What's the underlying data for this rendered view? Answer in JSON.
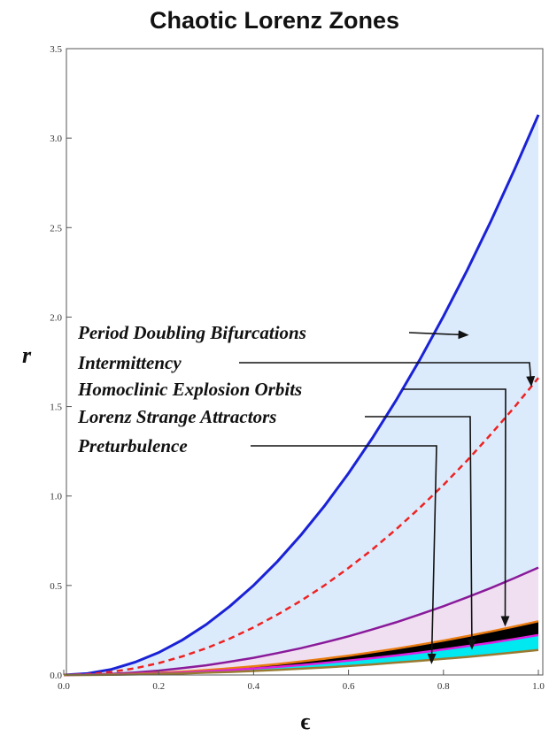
{
  "chart_data": {
    "type": "area",
    "title": "Chaotic Lorenz Zones",
    "xlabel": "ϵ",
    "ylabel": "r",
    "xlim": [
      0,
      1
    ],
    "ylim": [
      0,
      3.5
    ],
    "x_ticks": [
      "0.0",
      "0.2",
      "0.4",
      "0.6",
      "0.8",
      "1.0"
    ],
    "y_ticks": [
      "0.0",
      "0.5",
      "1.0",
      "1.5",
      "2.0",
      "2.5",
      "3.0",
      "3.5"
    ],
    "grid": false,
    "x": [
      0.0,
      0.05,
      0.1,
      0.15,
      0.2,
      0.25,
      0.3,
      0.35,
      0.4,
      0.45,
      0.5,
      0.55,
      0.6,
      0.65,
      0.7,
      0.75,
      0.8,
      0.85,
      0.9,
      0.95,
      1.0
    ],
    "series": [
      {
        "color": "#1a22d6",
        "style": "solid",
        "fill": "#dcebfb",
        "values": [
          0.0,
          0.008,
          0.031,
          0.071,
          0.125,
          0.196,
          0.282,
          0.384,
          0.501,
          0.634,
          0.783,
          0.947,
          1.127,
          1.323,
          1.534,
          1.761,
          2.004,
          2.262,
          2.536,
          2.826,
          3.13
        ]
      },
      {
        "color": "#ee2222",
        "style": "dashed",
        "values": [
          0.0,
          0.004,
          0.017,
          0.037,
          0.066,
          0.104,
          0.149,
          0.203,
          0.266,
          0.337,
          0.415,
          0.502,
          0.598,
          0.701,
          0.813,
          0.934,
          1.062,
          1.199,
          1.345,
          1.498,
          1.66
        ]
      },
      {
        "color": "#8a1a9a",
        "style": "solid",
        "fill": "#f0dff0",
        "values": [
          0.0,
          0.002,
          0.006,
          0.014,
          0.024,
          0.038,
          0.054,
          0.074,
          0.096,
          0.122,
          0.15,
          0.182,
          0.216,
          0.254,
          0.294,
          0.338,
          0.384,
          0.434,
          0.486,
          0.542,
          0.6
        ]
      },
      {
        "color": "#e87a10",
        "style": "solid",
        "fill": "#000000",
        "values": [
          0.0,
          0.001,
          0.003,
          0.007,
          0.012,
          0.019,
          0.027,
          0.037,
          0.048,
          0.061,
          0.075,
          0.091,
          0.108,
          0.127,
          0.147,
          0.169,
          0.192,
          0.217,
          0.243,
          0.271,
          0.3
        ]
      },
      {
        "color": "#e020e0",
        "style": "solid",
        "fill": "#00e8f0",
        "values": [
          0.0,
          0.001,
          0.002,
          0.005,
          0.009,
          0.014,
          0.02,
          0.027,
          0.036,
          0.045,
          0.056,
          0.067,
          0.08,
          0.094,
          0.109,
          0.125,
          0.143,
          0.161,
          0.18,
          0.201,
          0.223
        ]
      },
      {
        "color": "#9a7a30",
        "style": "solid",
        "values": [
          0.0,
          0.0,
          0.001,
          0.003,
          0.006,
          0.009,
          0.013,
          0.017,
          0.022,
          0.028,
          0.035,
          0.042,
          0.05,
          0.059,
          0.069,
          0.079,
          0.09,
          0.101,
          0.113,
          0.126,
          0.14
        ]
      }
    ],
    "annotations": [
      {
        "text": "Period Doubling Bifurcations",
        "arrow_to": [
          0.85,
          1.9
        ]
      },
      {
        "text": "Intermittency",
        "arrow_to": [
          0.985,
          1.62
        ]
      },
      {
        "text": "Homoclinic Explosion Orbits",
        "arrow_to": [
          0.93,
          0.28
        ]
      },
      {
        "text": "Lorenz Strange Attractors",
        "arrow_to": [
          0.86,
          0.15
        ]
      },
      {
        "text": "Preturbulence",
        "arrow_to": [
          0.775,
          0.07
        ]
      }
    ]
  }
}
